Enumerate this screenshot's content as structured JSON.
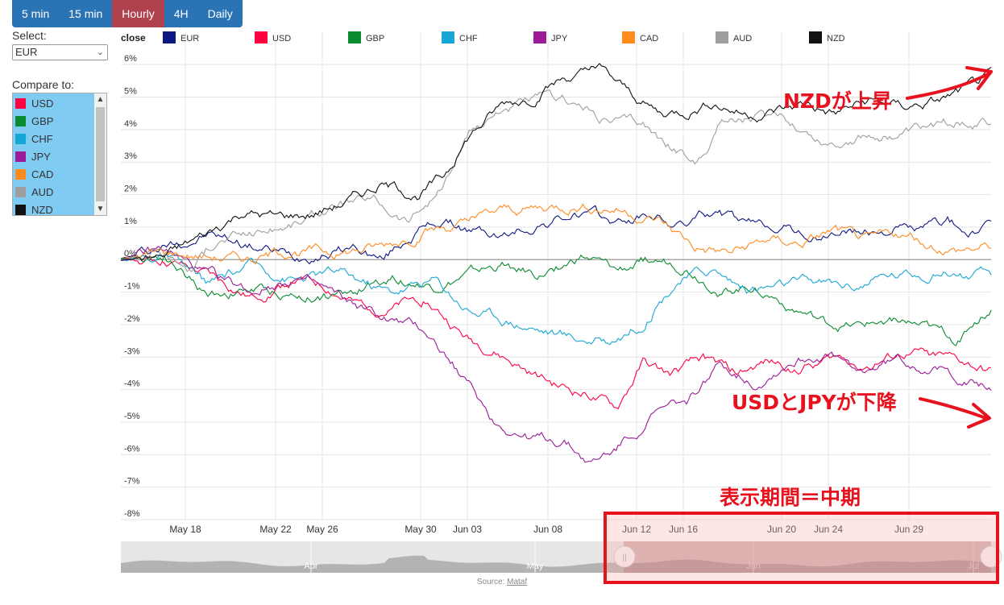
{
  "tabs": [
    "5 min",
    "15 min",
    "Hourly",
    "4H",
    "Daily"
  ],
  "active_tab": 2,
  "select": {
    "label": "Select:",
    "value": "EUR"
  },
  "compare": {
    "label": "Compare to:",
    "items": [
      {
        "label": "USD",
        "color": "#ff0040"
      },
      {
        "label": "GBP",
        "color": "#0b8a30"
      },
      {
        "label": "CHF",
        "color": "#18a7d4"
      },
      {
        "label": "JPY",
        "color": "#9b1b98"
      },
      {
        "label": "CAD",
        "color": "#ff8a1e"
      },
      {
        "label": "AUD",
        "color": "#9e9e9e"
      },
      {
        "label": "NZD",
        "color": "#111111"
      }
    ]
  },
  "chart_data": {
    "type": "line",
    "legend_title": "close",
    "legend_placement": "top",
    "y_unit": "%",
    "ylim": [
      -8,
      6.5
    ],
    "yticks": [
      6,
      5,
      4,
      3,
      2,
      1,
      0,
      -1,
      -2,
      -3,
      -4,
      -5,
      -6,
      -7,
      -8
    ],
    "xticks": [
      "May 18",
      "May 22",
      "May 26",
      "May 30",
      "Jun 03",
      "Jun 08",
      "Jun 12",
      "Jun 16",
      "Jun 20",
      "Jun 24",
      "Jun 29"
    ],
    "grid": true,
    "series": [
      {
        "name": "EUR",
        "color": "#0d1980",
        "anchors": [
          [
            0,
            0
          ],
          [
            0.05,
            0.4
          ],
          [
            0.1,
            0.8
          ],
          [
            0.14,
            0.5
          ],
          [
            0.2,
            0.1
          ],
          [
            0.27,
            0.4
          ],
          [
            0.3,
            0
          ],
          [
            0.34,
            0.9
          ],
          [
            0.37,
            1.2
          ],
          [
            0.4,
            0.9
          ],
          [
            0.44,
            0.7
          ],
          [
            0.48,
            1.1
          ],
          [
            0.53,
            1.4
          ],
          [
            0.57,
            1.1
          ],
          [
            0.61,
            1.4
          ],
          [
            0.64,
            1.0
          ],
          [
            0.68,
            1.5
          ],
          [
            0.72,
            1.0
          ],
          [
            0.76,
            1.1
          ],
          [
            0.8,
            0.6
          ],
          [
            0.83,
            0.9
          ],
          [
            0.86,
            0.8
          ],
          [
            0.89,
            1.0
          ],
          [
            0.92,
            0.9
          ],
          [
            0.95,
            1.2
          ],
          [
            0.97,
            0.8
          ],
          [
            1,
            0.95
          ]
        ]
      },
      {
        "name": "USD",
        "color": "#ff0040",
        "anchors": [
          [
            0,
            0
          ],
          [
            0.05,
            0
          ],
          [
            0.1,
            -0.5
          ],
          [
            0.15,
            -1.2
          ],
          [
            0.2,
            -0.6
          ],
          [
            0.24,
            -0.9
          ],
          [
            0.27,
            -1.4
          ],
          [
            0.31,
            -1.5
          ],
          [
            0.35,
            -1.2
          ],
          [
            0.4,
            -2.5
          ],
          [
            0.43,
            -2.8
          ],
          [
            0.47,
            -3.5
          ],
          [
            0.5,
            -3.9
          ],
          [
            0.54,
            -4.2
          ],
          [
            0.57,
            -4.6
          ],
          [
            0.6,
            -3.2
          ],
          [
            0.63,
            -3.6
          ],
          [
            0.67,
            -3.1
          ],
          [
            0.71,
            -3.5
          ],
          [
            0.74,
            -3.2
          ],
          [
            0.78,
            -3.3
          ],
          [
            0.82,
            -3.0
          ],
          [
            0.86,
            -3.2
          ],
          [
            0.9,
            -2.9
          ],
          [
            0.94,
            -3.0
          ],
          [
            0.97,
            -3.2
          ],
          [
            1,
            -3.5
          ]
        ]
      },
      {
        "name": "GBP",
        "color": "#0b8a30",
        "anchors": [
          [
            0,
            0
          ],
          [
            0.05,
            0.2
          ],
          [
            0.1,
            -1.1
          ],
          [
            0.15,
            -0.9
          ],
          [
            0.2,
            -1.1
          ],
          [
            0.26,
            -1.1
          ],
          [
            0.31,
            -0.5
          ],
          [
            0.36,
            -0.8
          ],
          [
            0.4,
            -0.5
          ],
          [
            0.44,
            -0.2
          ],
          [
            0.48,
            -0.5
          ],
          [
            0.53,
            0.1
          ],
          [
            0.57,
            -0.4
          ],
          [
            0.61,
            0.0
          ],
          [
            0.65,
            -0.2
          ],
          [
            0.69,
            -0.9
          ],
          [
            0.73,
            -0.8
          ],
          [
            0.77,
            -1.4
          ],
          [
            0.81,
            -2.0
          ],
          [
            0.85,
            -2.1
          ],
          [
            0.89,
            -1.8
          ],
          [
            0.92,
            -2.1
          ],
          [
            0.96,
            -2.5
          ],
          [
            0.98,
            -1.9
          ],
          [
            1,
            -1.5
          ]
        ]
      },
      {
        "name": "CHF",
        "color": "#18a7d4",
        "anchors": [
          [
            0,
            0
          ],
          [
            0.05,
            0.1
          ],
          [
            0.1,
            -0.8
          ],
          [
            0.15,
            -0.2
          ],
          [
            0.2,
            -0.6
          ],
          [
            0.25,
            -0.4
          ],
          [
            0.31,
            -1.0
          ],
          [
            0.36,
            -0.6
          ],
          [
            0.4,
            -1.5
          ],
          [
            0.44,
            -1.8
          ],
          [
            0.48,
            -2.1
          ],
          [
            0.52,
            -2.4
          ],
          [
            0.56,
            -2.5
          ],
          [
            0.6,
            -1.9
          ],
          [
            0.64,
            -0.6
          ],
          [
            0.68,
            -0.3
          ],
          [
            0.72,
            -0.9
          ],
          [
            0.76,
            -0.8
          ],
          [
            0.8,
            -0.7
          ],
          [
            0.84,
            -0.8
          ],
          [
            0.88,
            -0.5
          ],
          [
            0.92,
            -0.4
          ],
          [
            0.95,
            -0.3
          ],
          [
            0.98,
            -0.5
          ],
          [
            1,
            -0.5
          ]
        ]
      },
      {
        "name": "JPY",
        "color": "#9b1b98",
        "anchors": [
          [
            0,
            0
          ],
          [
            0.05,
            0.3
          ],
          [
            0.1,
            -0.5
          ],
          [
            0.15,
            -1.0
          ],
          [
            0.2,
            -0.5
          ],
          [
            0.25,
            -1.2
          ],
          [
            0.3,
            -1.8
          ],
          [
            0.35,
            -2.2
          ],
          [
            0.39,
            -3.5
          ],
          [
            0.43,
            -5.0
          ],
          [
            0.47,
            -5.5
          ],
          [
            0.51,
            -5.6
          ],
          [
            0.54,
            -6.3
          ],
          [
            0.57,
            -5.8
          ],
          [
            0.61,
            -4.8
          ],
          [
            0.65,
            -4.4
          ],
          [
            0.69,
            -3.2
          ],
          [
            0.73,
            -3.8
          ],
          [
            0.77,
            -3.1
          ],
          [
            0.81,
            -2.9
          ],
          [
            0.85,
            -3.5
          ],
          [
            0.89,
            -3.1
          ],
          [
            0.93,
            -3.3
          ],
          [
            0.96,
            -3.6
          ],
          [
            1,
            -4.0
          ]
        ]
      },
      {
        "name": "CAD",
        "color": "#ff8a1e",
        "anchors": [
          [
            0,
            0
          ],
          [
            0.05,
            0.2
          ],
          [
            0.1,
            0.1
          ],
          [
            0.15,
            0.0
          ],
          [
            0.2,
            0.3
          ],
          [
            0.25,
            0.2
          ],
          [
            0.3,
            0.4
          ],
          [
            0.35,
            0.9
          ],
          [
            0.4,
            1.1
          ],
          [
            0.44,
            1.5
          ],
          [
            0.48,
            1.6
          ],
          [
            0.52,
            1.7
          ],
          [
            0.57,
            1.6
          ],
          [
            0.62,
            1.2
          ],
          [
            0.66,
            0.4
          ],
          [
            0.7,
            0.2
          ],
          [
            0.74,
            0.6
          ],
          [
            0.78,
            0.5
          ],
          [
            0.82,
            0.9
          ],
          [
            0.86,
            0.5
          ],
          [
            0.89,
            0.8
          ],
          [
            0.92,
            0.5
          ],
          [
            0.96,
            0.3
          ],
          [
            1,
            0.4
          ]
        ]
      },
      {
        "name": "AUD",
        "color": "#9e9e9e",
        "anchors": [
          [
            0,
            0
          ],
          [
            0.04,
            0.3
          ],
          [
            0.08,
            -0.3
          ],
          [
            0.11,
            0.6
          ],
          [
            0.15,
            0.8
          ],
          [
            0.2,
            1.1
          ],
          [
            0.25,
            1.7
          ],
          [
            0.29,
            1.8
          ],
          [
            0.33,
            1.2
          ],
          [
            0.37,
            2.2
          ],
          [
            0.4,
            3.8
          ],
          [
            0.44,
            4.7
          ],
          [
            0.48,
            4.9
          ],
          [
            0.52,
            4.8
          ],
          [
            0.56,
            4.3
          ],
          [
            0.6,
            4.2
          ],
          [
            0.63,
            3.5
          ],
          [
            0.66,
            2.9
          ],
          [
            0.69,
            4.3
          ],
          [
            0.73,
            4.4
          ],
          [
            0.77,
            4.2
          ],
          [
            0.81,
            3.6
          ],
          [
            0.85,
            3.8
          ],
          [
            0.89,
            3.8
          ],
          [
            0.93,
            4.0
          ],
          [
            0.97,
            4.3
          ],
          [
            1,
            4.2
          ]
        ]
      },
      {
        "name": "NZD",
        "color": "#111111",
        "anchors": [
          [
            0,
            0
          ],
          [
            0.05,
            0.1
          ],
          [
            0.1,
            0.8
          ],
          [
            0.14,
            1.5
          ],
          [
            0.18,
            1.3
          ],
          [
            0.22,
            1.4
          ],
          [
            0.26,
            1.8
          ],
          [
            0.3,
            2.3
          ],
          [
            0.34,
            2.0
          ],
          [
            0.37,
            2.5
          ],
          [
            0.4,
            3.8
          ],
          [
            0.44,
            4.8
          ],
          [
            0.47,
            5.0
          ],
          [
            0.51,
            5.6
          ],
          [
            0.55,
            5.8
          ],
          [
            0.58,
            5.2
          ],
          [
            0.62,
            4.5
          ],
          [
            0.65,
            4.6
          ],
          [
            0.68,
            4.9
          ],
          [
            0.72,
            4.5
          ],
          [
            0.75,
            4.6
          ],
          [
            0.79,
            4.8
          ],
          [
            0.82,
            4.5
          ],
          [
            0.86,
            4.9
          ],
          [
            0.9,
            4.7
          ],
          [
            0.94,
            4.9
          ],
          [
            0.97,
            5.2
          ],
          [
            1,
            5.6
          ]
        ]
      }
    ],
    "navigator": {
      "labels": [
        "Apr",
        "May",
        "Jun",
        "Jul"
      ]
    },
    "source": "Source:",
    "source_link": "Mataf"
  },
  "annotations": {
    "nzd_up": "NZDが上昇",
    "usd_jpy_down": "USDとJPYが下降",
    "period": "表示期間＝中期"
  }
}
